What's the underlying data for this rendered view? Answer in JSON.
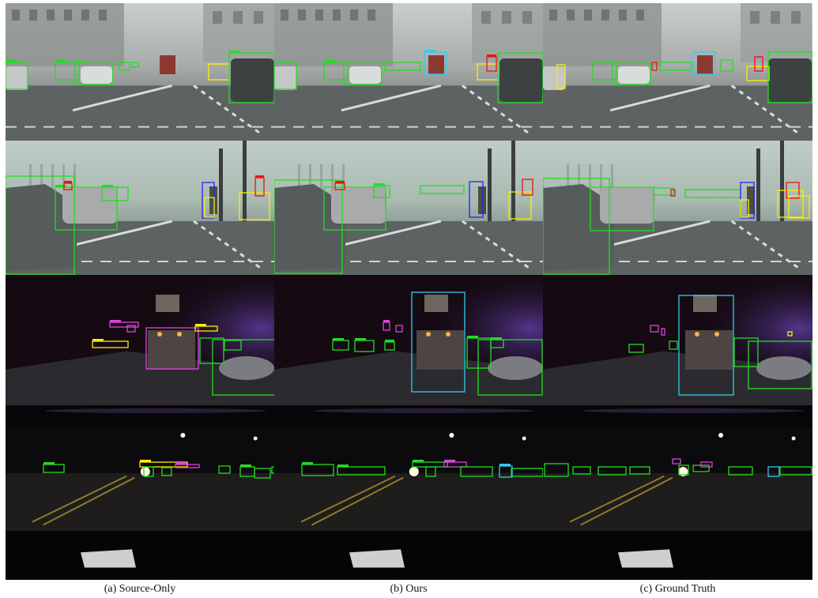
{
  "captions": {
    "source_only": "(a) Source-Only",
    "ours": "(b) Ours",
    "ground_truth": "(c) Ground Truth"
  },
  "colors": {
    "car": "#22dd22",
    "person": "#ffee00",
    "rider": "#2222ff",
    "bicycle": "#ee1111",
    "truck": "#33ccee",
    "traffic_sign": "#dd44dd"
  }
}
